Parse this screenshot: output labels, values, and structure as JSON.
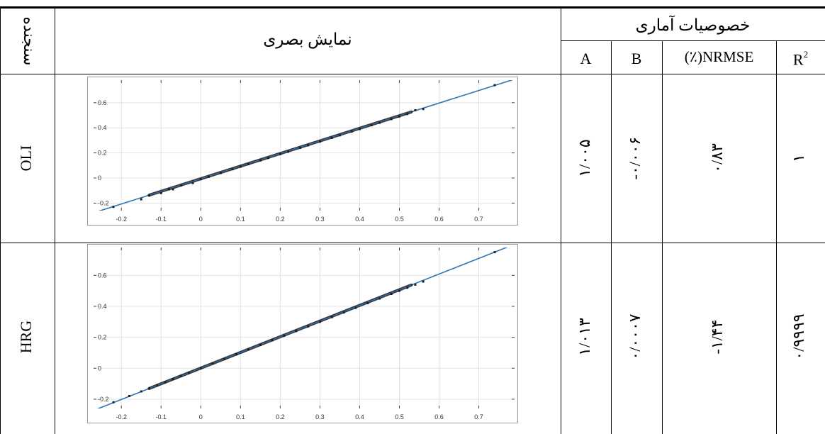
{
  "headers": {
    "instrument": "سنجنده",
    "visual": "نمایش بصری",
    "stats": "خصوصیات آماری",
    "col_a": "A",
    "col_b": "B",
    "col_nrmse": "(٪)NRMSE",
    "col_r2": "R",
    "col_r2_sup": "2"
  },
  "rows": [
    {
      "sensor": "OLI",
      "a": "۱/۰۰۵",
      "b": "-۰/۰۰۶",
      "nrmse": "۰/۸۳",
      "r2": "۱"
    },
    {
      "sensor": "HRG",
      "a": "۱/۰۱۳",
      "b": "۰/۰۰۰۷",
      "nrmse": "-۱/۴۴",
      "r2": "۰/۹۹۹۹"
    }
  ],
  "chart_data": [
    {
      "type": "scatter",
      "title": "",
      "xlabel": "",
      "ylabel": "",
      "xlim": [
        -0.27,
        0.79
      ],
      "ylim": [
        -0.26,
        0.78
      ],
      "xticks": [
        "-0.2",
        "-0.1",
        "0",
        "0.1",
        "0.2",
        "0.3",
        "0.4",
        "0.5",
        "0.6",
        "0.7"
      ],
      "yticks": [
        "-0.2",
        "0",
        "0.2",
        "0.4",
        "0.6"
      ],
      "grid": true,
      "fit_line": {
        "slope": 1.005,
        "intercept": -0.006,
        "color": "#2e75b6"
      },
      "points_x": [
        -0.22,
        -0.15,
        -0.13,
        -0.1,
        -0.08,
        -0.07,
        -0.05,
        -0.02,
        0.0,
        0.02,
        0.05,
        0.08,
        0.1,
        0.12,
        0.15,
        0.17,
        0.2,
        0.22,
        0.25,
        0.27,
        0.3,
        0.33,
        0.35,
        0.38,
        0.4,
        0.43,
        0.45,
        0.48,
        0.5,
        0.52,
        0.54,
        0.56,
        0.74
      ],
      "points_y": [
        -0.23,
        -0.17,
        -0.14,
        -0.12,
        -0.09,
        -0.09,
        -0.06,
        -0.04,
        -0.01,
        0.01,
        0.04,
        0.07,
        0.09,
        0.11,
        0.14,
        0.16,
        0.19,
        0.21,
        0.24,
        0.26,
        0.29,
        0.32,
        0.34,
        0.37,
        0.39,
        0.42,
        0.44,
        0.47,
        0.49,
        0.51,
        0.54,
        0.55,
        0.74
      ],
      "point_color": "#1f1f1f"
    },
    {
      "type": "scatter",
      "title": "",
      "xlabel": "",
      "ylabel": "",
      "xlim": [
        -0.27,
        0.79
      ],
      "ylim": [
        -0.26,
        0.78
      ],
      "xticks": [
        "-0.2",
        "-0.1",
        "0",
        "0.1",
        "0.2",
        "0.3",
        "0.4",
        "0.5",
        "0.6",
        "0.7"
      ],
      "yticks": [
        "-0.2",
        "0",
        "0.2",
        "0.4",
        "0.6"
      ],
      "grid": true,
      "fit_line": {
        "slope": 1.013,
        "intercept": 0.0007,
        "color": "#2e75b6"
      },
      "points_x": [
        -0.22,
        -0.18,
        -0.15,
        -0.13,
        -0.11,
        -0.09,
        -0.07,
        -0.05,
        -0.03,
        0.0,
        0.03,
        0.06,
        0.09,
        0.12,
        0.15,
        0.18,
        0.21,
        0.24,
        0.27,
        0.3,
        0.33,
        0.36,
        0.39,
        0.42,
        0.45,
        0.48,
        0.5,
        0.52,
        0.54,
        0.56,
        0.74
      ],
      "points_y": [
        -0.22,
        -0.18,
        -0.15,
        -0.13,
        -0.11,
        -0.09,
        -0.07,
        -0.05,
        -0.03,
        0.0,
        0.03,
        0.06,
        0.09,
        0.12,
        0.15,
        0.18,
        0.21,
        0.24,
        0.27,
        0.3,
        0.33,
        0.36,
        0.39,
        0.42,
        0.45,
        0.48,
        0.5,
        0.52,
        0.54,
        0.56,
        0.75
      ],
      "point_color": "#1f1f1f"
    }
  ]
}
